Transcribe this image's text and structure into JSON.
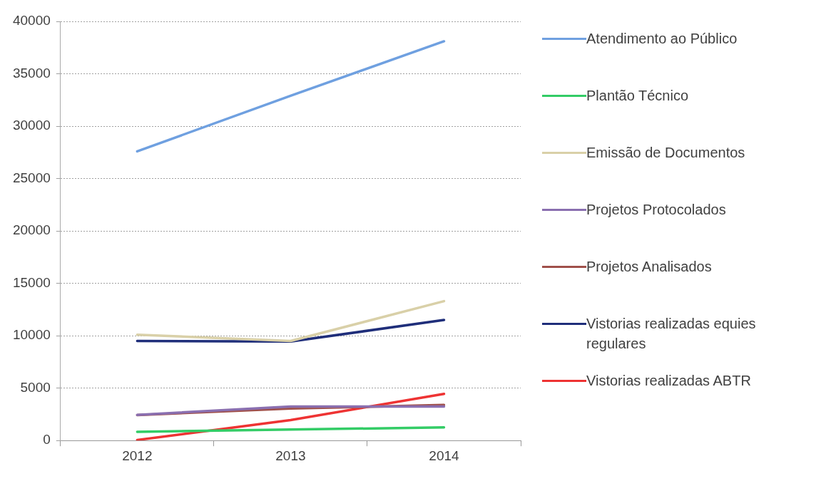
{
  "chart_data": {
    "type": "line",
    "categories": [
      "2012",
      "2013",
      "2014"
    ],
    "series": [
      {
        "name": "Atendimento ao Público",
        "color": "#6fa0e0",
        "values": [
          27600,
          32900,
          38100
        ]
      },
      {
        "name": "Plantão Técnico",
        "color": "#33cc66",
        "values": [
          830,
          1050,
          1250
        ]
      },
      {
        "name": "Emissão de Documentos",
        "color": "#d9d0a8",
        "values": [
          10100,
          9500,
          13300
        ]
      },
      {
        "name": "Projetos Protocolados",
        "color": "#8a6fb0",
        "values": [
          2450,
          3250,
          3250
        ]
      },
      {
        "name": "Projetos Analisados",
        "color": "#a0504a",
        "values": [
          2430,
          3050,
          3400
        ]
      },
      {
        "name": "Vistorias realizadas equies regulares",
        "color": "#1f2e7a",
        "values": [
          9500,
          9450,
          11500
        ]
      },
      {
        "name": "Vistorias realizadas ABTR",
        "color": "#ee3333",
        "values": [
          50,
          1950,
          4450
        ]
      }
    ],
    "ylim": [
      0,
      40000
    ],
    "yticks": [
      0,
      5000,
      10000,
      15000,
      20000,
      25000,
      30000,
      35000,
      40000
    ],
    "grid": "y",
    "legend": "right",
    "marker": "none",
    "line_style": "solid"
  }
}
